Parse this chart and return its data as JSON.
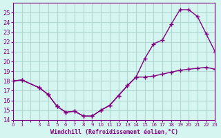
{
  "xlabel": "Windchill (Refroidissement éolien,°C)",
  "background_color": "#d5f5f0",
  "grid_color": "#b0d8d0",
  "line_color": "#800080",
  "x_values": [
    0,
    1,
    3,
    4,
    5,
    6,
    7,
    8,
    9,
    10,
    11,
    12,
    13,
    14,
    15,
    16,
    17,
    18,
    19,
    20,
    21,
    22,
    23
  ],
  "line1_y": [
    18.0,
    18.1,
    17.3,
    16.6,
    15.4,
    14.8,
    14.9,
    14.4,
    14.4,
    15.0,
    15.5,
    16.5,
    17.5,
    18.4,
    18.4,
    18.5,
    18.7,
    18.9,
    19.1,
    19.2,
    19.3,
    19.4,
    19.2
  ],
  "line2_y": [
    18.0,
    18.1,
    17.3,
    16.6,
    15.4,
    14.8,
    14.9,
    14.4,
    14.4,
    15.0,
    15.5,
    16.5,
    17.5,
    18.4,
    20.3,
    21.8,
    22.2,
    23.8,
    25.3,
    25.3,
    24.6,
    22.8,
    21.0
  ],
  "ylim": [
    14,
    26
  ],
  "yticks": [
    14,
    15,
    16,
    17,
    18,
    19,
    20,
    21,
    22,
    23,
    24,
    25
  ],
  "xlim": [
    0,
    23
  ],
  "xtick_labels": [
    "0",
    "1",
    "",
    "3",
    "4",
    "5",
    "6",
    "7",
    "8",
    "9",
    "10",
    "11",
    "12",
    "13",
    "14",
    "15",
    "16",
    "17",
    "18",
    "19",
    "20",
    "21",
    "22",
    "23"
  ],
  "marker": "+"
}
